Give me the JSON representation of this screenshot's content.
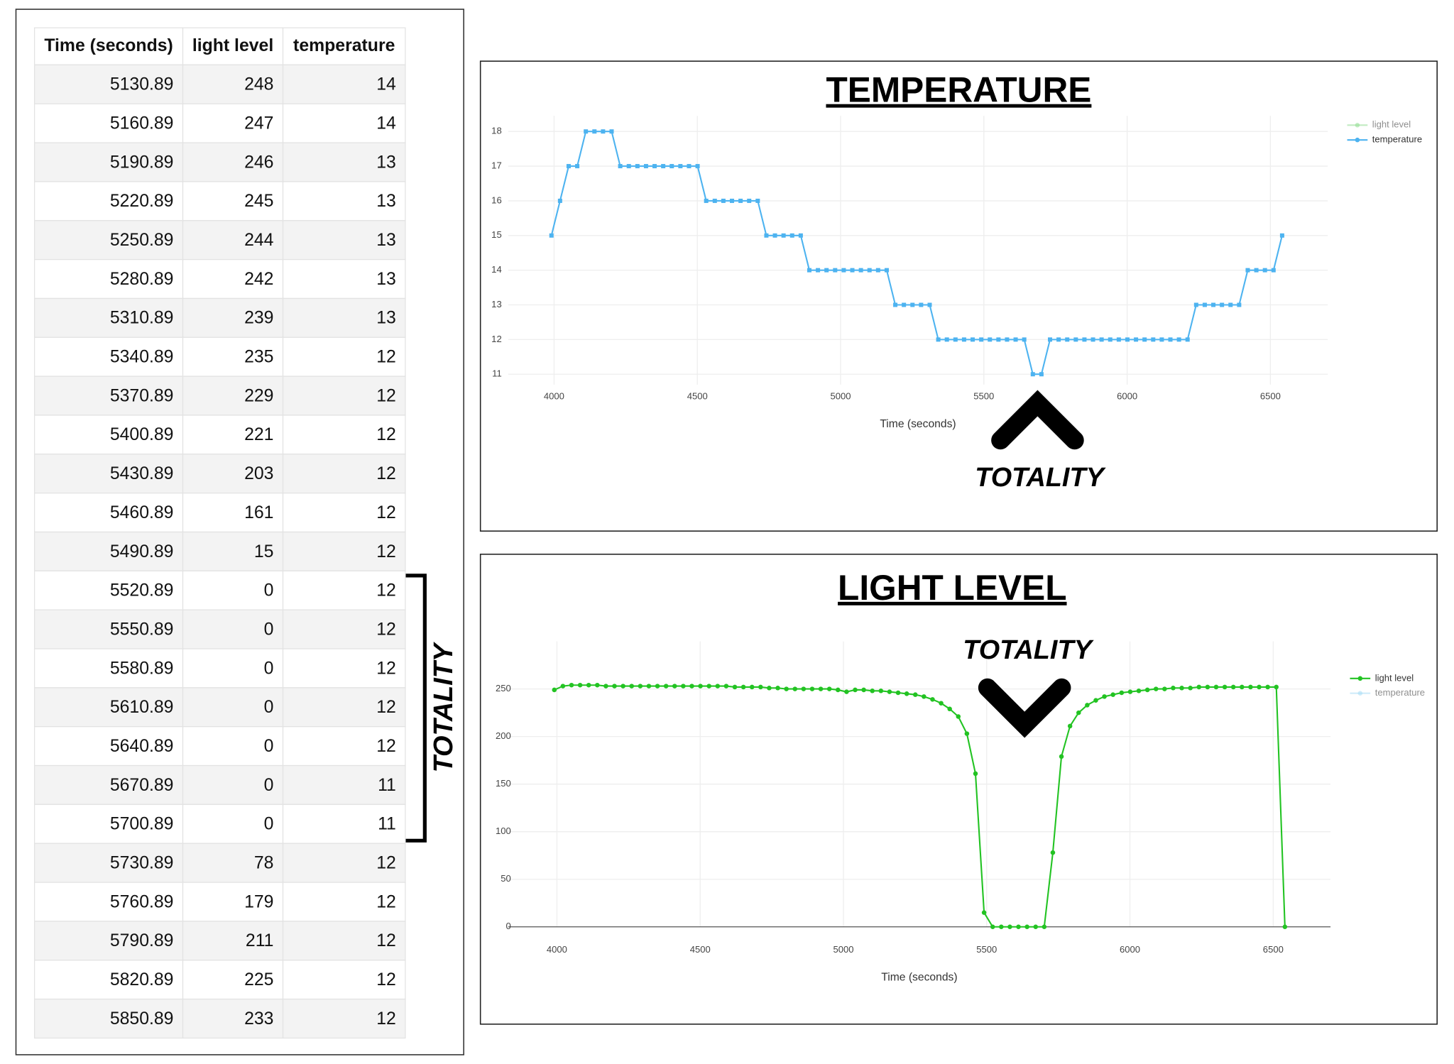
{
  "table": {
    "header": [
      "Time (seconds)",
      "light level",
      "temperature"
    ],
    "rows": [
      [
        5130.89,
        248,
        14
      ],
      [
        5160.89,
        247,
        14
      ],
      [
        5190.89,
        246,
        13
      ],
      [
        5220.89,
        245,
        13
      ],
      [
        5250.89,
        244,
        13
      ],
      [
        5280.89,
        242,
        13
      ],
      [
        5310.89,
        239,
        13
      ],
      [
        5340.89,
        235,
        12
      ],
      [
        5370.89,
        229,
        12
      ],
      [
        5400.89,
        221,
        12
      ],
      [
        5430.89,
        203,
        12
      ],
      [
        5460.89,
        161,
        12
      ],
      [
        5490.89,
        15,
        12
      ],
      [
        5520.89,
        0,
        12
      ],
      [
        5550.89,
        0,
        12
      ],
      [
        5580.89,
        0,
        12
      ],
      [
        5610.89,
        0,
        12
      ],
      [
        5640.89,
        0,
        12
      ],
      [
        5670.89,
        0,
        11
      ],
      [
        5700.89,
        0,
        11
      ],
      [
        5730.89,
        78,
        12
      ],
      [
        5760.89,
        179,
        12
      ],
      [
        5790.89,
        211,
        12
      ],
      [
        5820.89,
        225,
        12
      ],
      [
        5850.89,
        233,
        12
      ]
    ],
    "annotation": "TOTALITY"
  },
  "chart_data": [
    {
      "type": "line",
      "title": "TEMPERATURE",
      "x_label": "Time (seconds)",
      "annotation": "TOTALITY",
      "annotation_arrow": "up",
      "marker": "square",
      "grid": true,
      "legend": [
        {
          "name": "light level",
          "color": "#8fdc8f",
          "active": false
        },
        {
          "name": "temperature",
          "color": "#4db3f0",
          "active": true
        }
      ],
      "x": [
        3990.89,
        4020.89,
        4050.89,
        4080.89,
        4110.89,
        4140.89,
        4170.89,
        4200.89,
        4230.89,
        4260.89,
        4290.89,
        4320.89,
        4350.89,
        4380.89,
        4410.89,
        4440.89,
        4470.89,
        4500.89,
        4530.89,
        4560.89,
        4590.89,
        4620.89,
        4650.89,
        4680.89,
        4710.89,
        4740.89,
        4770.89,
        4800.89,
        4830.89,
        4860.89,
        4890.89,
        4920.89,
        4950.89,
        4980.89,
        5010.89,
        5040.89,
        5070.89,
        5100.89,
        5130.89,
        5160.89,
        5190.89,
        5220.89,
        5250.89,
        5280.89,
        5310.89,
        5340.89,
        5370.89,
        5400.89,
        5430.89,
        5460.89,
        5490.89,
        5520.89,
        5550.89,
        5580.89,
        5610.89,
        5640.89,
        5670.89,
        5700.89,
        5730.89,
        5760.89,
        5790.89,
        5820.89,
        5850.89,
        5880.89,
        5910.89,
        5940.89,
        5970.89,
        6000.89,
        6030.89,
        6060.89,
        6090.89,
        6120.89,
        6150.89,
        6180.89,
        6210.89,
        6240.89,
        6270.89,
        6300.89,
        6330.89,
        6360.89,
        6390.89,
        6420.89,
        6450.89,
        6480.89,
        6510.89,
        6540.89
      ],
      "series": [
        {
          "color": "#4db3f0",
          "values": [
            15,
            16,
            17,
            17,
            18,
            18,
            18,
            18,
            17,
            17,
            17,
            17,
            17,
            17,
            17,
            17,
            17,
            17,
            16,
            16,
            16,
            16,
            16,
            16,
            16,
            15,
            15,
            15,
            15,
            15,
            14,
            14,
            14,
            14,
            14,
            14,
            14,
            14,
            14,
            14,
            13,
            13,
            13,
            13,
            13,
            12,
            12,
            12,
            12,
            12,
            12,
            12,
            12,
            12,
            12,
            12,
            11,
            11,
            12,
            12,
            12,
            12,
            12,
            12,
            12,
            12,
            12,
            12,
            12,
            12,
            12,
            12,
            12,
            12,
            12,
            13,
            13,
            13,
            13,
            13,
            13,
            14,
            14,
            14,
            14,
            15
          ]
        }
      ],
      "xlim": [
        3840,
        6700
      ],
      "xticks": [
        4000,
        4500,
        5000,
        5500,
        6000,
        6500
      ],
      "ylim": [
        10.7,
        18.45
      ],
      "yticks": [
        11,
        12,
        13,
        14,
        15,
        16,
        17,
        18
      ]
    },
    {
      "type": "line",
      "title": "LIGHT LEVEL",
      "x_label": "Time (seconds)",
      "annotation": "TOTALITY",
      "annotation_arrow": "down",
      "marker": "circle",
      "grid": true,
      "legend": [
        {
          "name": "light level",
          "color": "#22c322",
          "active": true
        },
        {
          "name": "temperature",
          "color": "#a8dcf5",
          "active": false
        }
      ],
      "x": [
        3990.89,
        4020.89,
        4050.89,
        4080.89,
        4110.89,
        4140.89,
        4170.89,
        4200.89,
        4230.89,
        4260.89,
        4290.89,
        4320.89,
        4350.89,
        4380.89,
        4410.89,
        4440.89,
        4470.89,
        4500.89,
        4530.89,
        4560.89,
        4590.89,
        4620.89,
        4650.89,
        4680.89,
        4710.89,
        4740.89,
        4770.89,
        4800.89,
        4830.89,
        4860.89,
        4890.89,
        4920.89,
        4950.89,
        4980.89,
        5010.89,
        5040.89,
        5070.89,
        5100.89,
        5130.89,
        5160.89,
        5190.89,
        5220.89,
        5250.89,
        5280.89,
        5310.89,
        5340.89,
        5370.89,
        5400.89,
        5430.89,
        5460.89,
        5490.89,
        5520.89,
        5550.89,
        5580.89,
        5610.89,
        5640.89,
        5670.89,
        5700.89,
        5730.89,
        5760.89,
        5790.89,
        5820.89,
        5850.89,
        5880.89,
        5910.89,
        5940.89,
        5970.89,
        6000.89,
        6030.89,
        6060.89,
        6090.89,
        6120.89,
        6150.89,
        6180.89,
        6210.89,
        6240.89,
        6270.89,
        6300.89,
        6330.89,
        6360.89,
        6390.89,
        6420.89,
        6450.89,
        6480.89,
        6510.89,
        6540.89
      ],
      "series": [
        {
          "color": "#22c322",
          "values": [
            249,
            253,
            254,
            254,
            254,
            254,
            253,
            253,
            253,
            253,
            253,
            253,
            253,
            253,
            253,
            253,
            253,
            253,
            253,
            253,
            253,
            252,
            252,
            252,
            252,
            251,
            251,
            250,
            250,
            250,
            250,
            250,
            250,
            249,
            247,
            249,
            249,
            248,
            248,
            247,
            246,
            245,
            244,
            242,
            239,
            235,
            229,
            221,
            203,
            161,
            15,
            0,
            0,
            0,
            0,
            0,
            0,
            0,
            78,
            179,
            211,
            225,
            233,
            238,
            242,
            244,
            246,
            247,
            248,
            249,
            250,
            250,
            251,
            251,
            251,
            252,
            252,
            252,
            252,
            252,
            252,
            252,
            252,
            252,
            252,
            0
          ]
        }
      ],
      "xlim": [
        3830,
        6700
      ],
      "xticks": [
        4000,
        4500,
        5000,
        5500,
        6000,
        6500
      ],
      "ylim": [
        0,
        300
      ],
      "yticks": [
        0,
        50,
        100,
        150,
        200,
        250
      ]
    }
  ]
}
